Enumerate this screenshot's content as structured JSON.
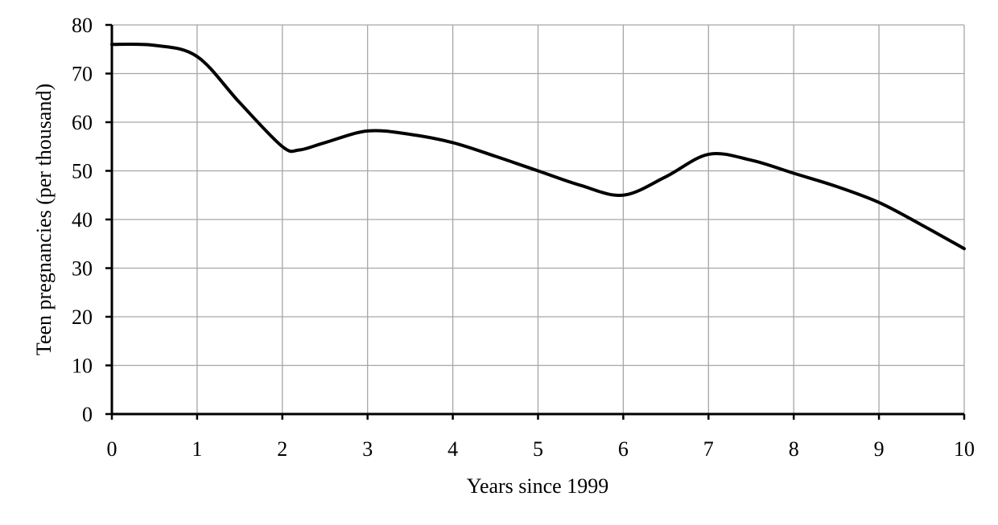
{
  "chart_data": {
    "type": "line",
    "title": "",
    "xlabel": "Years since 1999",
    "ylabel": "Teen pregnancies (per thousand)",
    "xlim": [
      0,
      10
    ],
    "ylim": [
      0,
      80
    ],
    "x_ticks": [
      "0",
      "1",
      "2",
      "3",
      "4",
      "5",
      "6",
      "7",
      "8",
      "9",
      "10"
    ],
    "y_ticks": [
      "0",
      "10",
      "20",
      "30",
      "40",
      "50",
      "60",
      "70",
      "80"
    ],
    "grid": true,
    "legend": "none",
    "series": [
      {
        "x": [
          0,
          0.5,
          1,
          1.5,
          2,
          2.2,
          2.5,
          3,
          3.5,
          4,
          4.5,
          5,
          5.5,
          6,
          6.5,
          7,
          7.5,
          8,
          8.5,
          9,
          9.5,
          10
        ],
        "y": [
          76,
          75.8,
          73.5,
          64,
          55,
          54.3,
          55.8,
          58.2,
          57.5,
          55.8,
          53,
          50,
          47,
          45,
          48.8,
          53.4,
          52.2,
          49.5,
          46.8,
          43.5,
          38.9,
          34
        ]
      }
    ],
    "colors": {
      "line": "#000000",
      "grid": "#a6a6a6",
      "axis": "#000000"
    }
  }
}
